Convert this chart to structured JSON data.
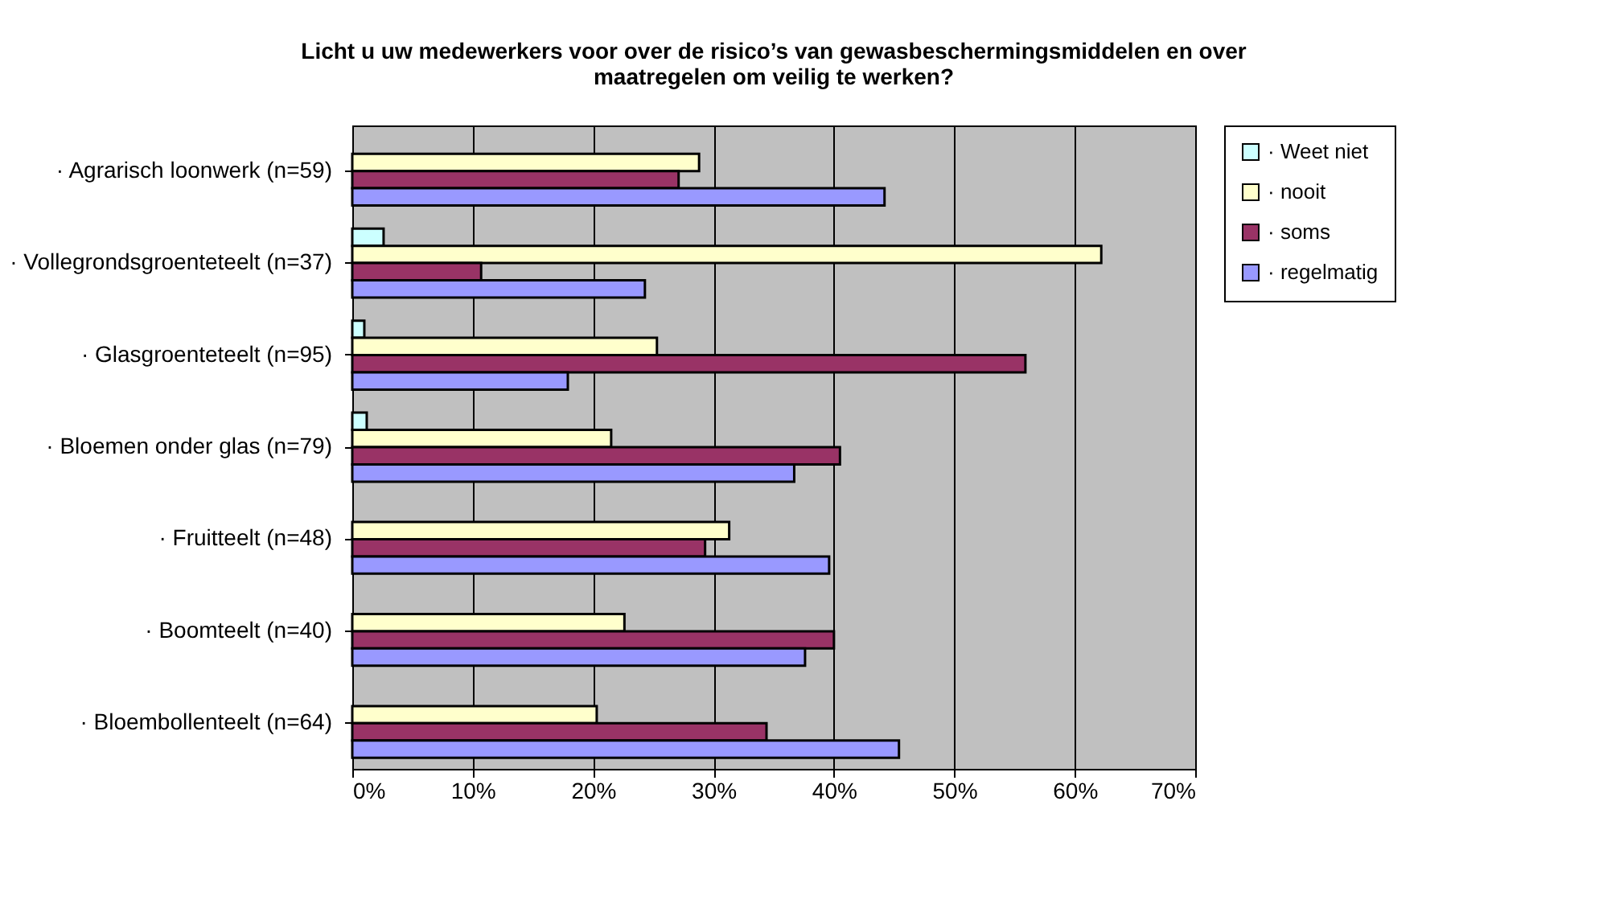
{
  "chart_data": {
    "type": "bar",
    "orientation": "horizontal",
    "title": "Licht u uw medewerkers voor over de risico’s van gewasbeschermingsmiddelen en over maatregelen om veilig te werken?",
    "categories": [
      "· Agrarisch loonwerk (n=59)",
      "· Vollegrondsgroenteteelt (n=37)",
      "· Glasgroenteteelt (n=95)",
      "· Bloemen onder glas (n=79)",
      "· Fruitteelt (n=48)",
      "· Boomteelt (n=40)",
      "· Bloembollenteelt (n=64)"
    ],
    "series": [
      {
        "name": "· Weet niet",
        "color": "#ccffff",
        "values": [
          null,
          2.6,
          1.0,
          1.2,
          null,
          null,
          null
        ]
      },
      {
        "name": "· nooit",
        "color": "#ffffcc",
        "values": [
          28.8,
          62.2,
          25.3,
          21.5,
          31.3,
          22.6,
          20.3
        ]
      },
      {
        "name": "· soms",
        "color": "#993366",
        "values": [
          27.1,
          10.7,
          55.9,
          40.5,
          29.3,
          40.0,
          34.4
        ]
      },
      {
        "name": "· regelmatig",
        "color": "#9999ff",
        "values": [
          44.2,
          24.3,
          17.9,
          36.7,
          39.6,
          37.6,
          45.4
        ]
      }
    ],
    "xlim": [
      0,
      70
    ],
    "xticks": [
      {
        "value": 0,
        "label": "0%"
      },
      {
        "value": 10,
        "label": "10%"
      },
      {
        "value": 20,
        "label": "20%"
      },
      {
        "value": 30,
        "label": "30%"
      },
      {
        "value": 40,
        "label": "40%"
      },
      {
        "value": 50,
        "label": "50%"
      },
      {
        "value": 60,
        "label": "60%"
      },
      {
        "value": 70,
        "label": "70%"
      }
    ],
    "grid": "x",
    "legend": "right"
  }
}
